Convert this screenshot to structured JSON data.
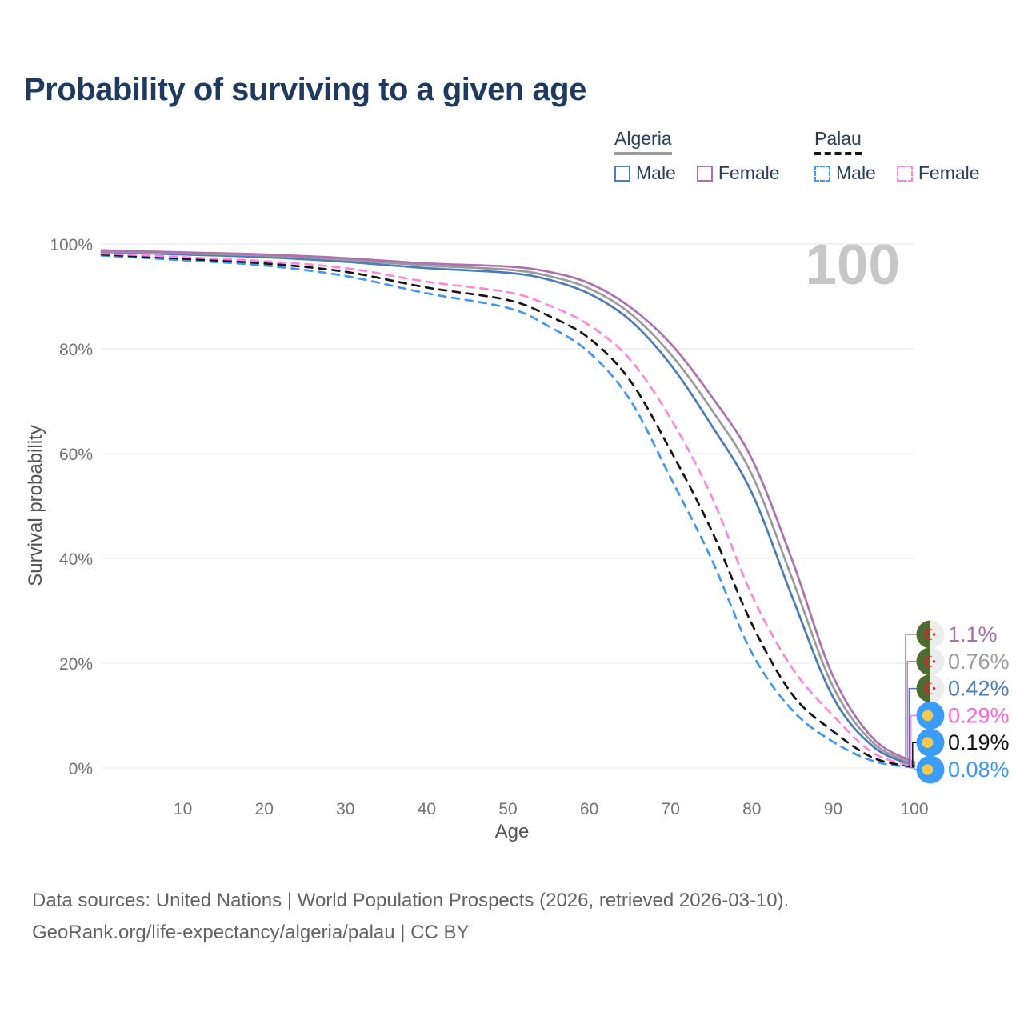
{
  "title": "Probability of surviving to a given age",
  "watermark": "100",
  "legend": {
    "groups": [
      {
        "label": "Algeria",
        "underline": {
          "color": "#9b9b9b",
          "style": "solid"
        },
        "items": [
          {
            "label": "Male",
            "color": "#4a7cb8",
            "dash": "solid"
          },
          {
            "label": "Female",
            "color": "#b06fb0",
            "dash": "solid"
          }
        ]
      },
      {
        "label": "Palau",
        "underline": {
          "color": "#141414",
          "style": "dashed"
        },
        "items": [
          {
            "label": "Male",
            "color": "#3e97f5",
            "dash": "dashed"
          },
          {
            "label": "Female",
            "color": "#ff85e0",
            "dash": "dashed"
          }
        ]
      }
    ]
  },
  "chart_data": {
    "type": "line",
    "title": "Probability of surviving to a given age",
    "xlabel": "Age",
    "ylabel": "Survival probability",
    "xlim": [
      0,
      100
    ],
    "ylim": [
      0,
      100
    ],
    "grid": "horizontal",
    "x_ticks": [
      10,
      20,
      30,
      40,
      50,
      60,
      70,
      80,
      90,
      100
    ],
    "y_ticks": [
      0,
      20,
      40,
      60,
      80,
      100
    ],
    "y_tick_suffix": "%",
    "ages": [
      0,
      10,
      20,
      30,
      40,
      50,
      55,
      60,
      65,
      70,
      75,
      80,
      85,
      90,
      95,
      100
    ],
    "series": [
      {
        "name": "Palau Male",
        "country": "Palau",
        "sex": "Male",
        "flag": "palau",
        "color": "#3e97f5",
        "label_color": "#3e97f5",
        "dash": "dashed",
        "end_label": "0.08%",
        "values": [
          97.8,
          96.9,
          95.9,
          93.9,
          90.6,
          87.8,
          84.3,
          79.3,
          70.3,
          55.4,
          40.0,
          22.0,
          11.0,
          5.0,
          1.3,
          0.08
        ]
      },
      {
        "name": "Palau Both sexes",
        "country": "Palau",
        "sex": "Both",
        "flag": "palau",
        "color": "#141414",
        "label_color": "#141414",
        "dash": "dashed",
        "end_label": "0.19%",
        "values": [
          98.0,
          97.2,
          96.3,
          94.7,
          91.7,
          89.3,
          86.3,
          82.0,
          74.0,
          60.6,
          45.5,
          27.5,
          14.0,
          7.0,
          1.9,
          0.19
        ]
      },
      {
        "name": "Palau Female",
        "country": "Palau",
        "sex": "Female",
        "flag": "palau",
        "color": "#ff85e0",
        "label_color": "#ff63d8",
        "dash": "dashed",
        "end_label": "0.29%",
        "values": [
          98.2,
          97.5,
          96.7,
          95.4,
          92.8,
          90.8,
          88.3,
          84.5,
          78.0,
          66.7,
          52.0,
          33.0,
          19.0,
          10.0,
          2.8,
          0.29
        ]
      },
      {
        "name": "Algeria Male",
        "country": "Algeria",
        "sex": "Male",
        "flag": "algeria",
        "color": "#4a7cb8",
        "label_color": "#4a7cb8",
        "dash": "solid",
        "end_label": "0.42%",
        "values": [
          98.5,
          98.0,
          97.5,
          96.6,
          95.4,
          94.5,
          93.2,
          90.5,
          85.5,
          77.0,
          65.5,
          52.5,
          32.5,
          13.5,
          4.0,
          0.42
        ]
      },
      {
        "name": "Algeria Both sexes",
        "country": "Algeria",
        "sex": "Both",
        "flag": "algeria",
        "color": "#9a9a9a",
        "label_color": "#9b9b9b",
        "dash": "solid",
        "end_label": "0.76%",
        "values": [
          98.6,
          98.2,
          97.8,
          97.0,
          95.9,
          95.1,
          93.9,
          91.5,
          86.8,
          79.0,
          68.5,
          56.0,
          36.0,
          15.5,
          4.7,
          0.76
        ]
      },
      {
        "name": "Algeria Female",
        "country": "Algeria",
        "sex": "Female",
        "flag": "algeria",
        "color": "#b06fb0",
        "label_color": "#a86fa8",
        "dash": "solid",
        "end_label": "1.1%",
        "values": [
          98.8,
          98.4,
          98.0,
          97.3,
          96.3,
          95.7,
          94.7,
          92.5,
          88.0,
          81.0,
          71.0,
          59.0,
          39.5,
          17.5,
          5.5,
          1.1
        ]
      }
    ],
    "flag_colors": {
      "algeria_green": "#4e6c31",
      "algeria_white": "#ececec",
      "algeria_red": "#cf2637",
      "palau_blue": "#3b9df8",
      "palau_yellow": "#f6c94e"
    }
  },
  "footer": {
    "line1": "Data sources: United Nations | World Population Prospects (2026, retrieved 2026-03-10).",
    "line2": "GeoRank.org/life-expectancy/algeria/palau | CC BY"
  }
}
